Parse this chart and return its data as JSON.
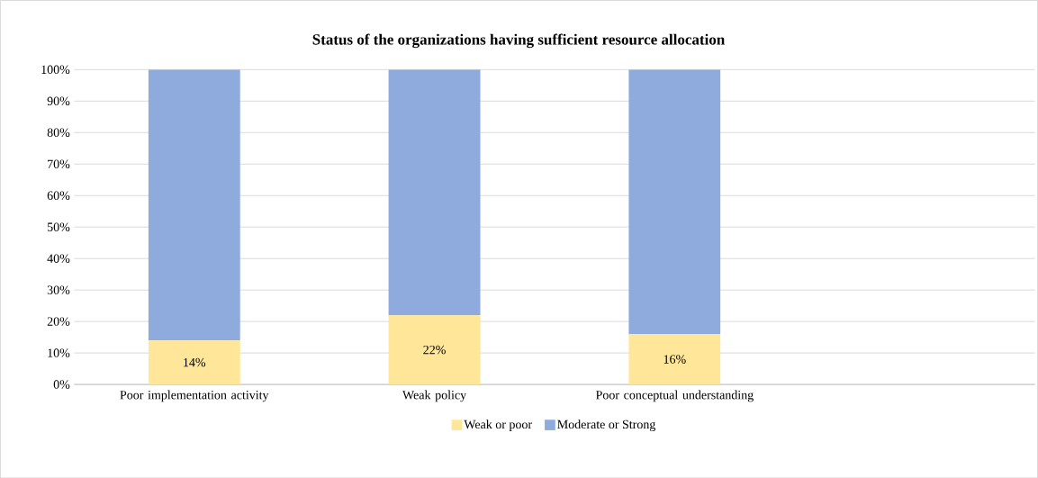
{
  "chart_data": {
    "type": "bar",
    "title": "Status of the organizations having sufficient resource allocation",
    "categories": [
      "Poor implementation activity",
      "Weak policy",
      "Poor conceptual understanding",
      null
    ],
    "stacked": true,
    "series": [
      {
        "name": "Weak or poor",
        "color": "#ffe699",
        "values": [
          14,
          22,
          16,
          null
        ],
        "value_labels": [
          "14%",
          "22%",
          "16%",
          null
        ]
      },
      {
        "name": "Moderate or Strong",
        "color": "#8faadc",
        "values": [
          86,
          78,
          84,
          null
        ]
      }
    ],
    "ylim": [
      0,
      100
    ],
    "yticks": [
      {
        "value": 0,
        "label": "0%"
      },
      {
        "value": 10,
        "label": "10%"
      },
      {
        "value": 20,
        "label": "20%"
      },
      {
        "value": 30,
        "label": "30%"
      },
      {
        "value": 40,
        "label": "40%"
      },
      {
        "value": 50,
        "label": "50%"
      },
      {
        "value": 60,
        "label": "60%"
      },
      {
        "value": 70,
        "label": "70%"
      },
      {
        "value": 80,
        "label": "80%"
      },
      {
        "value": 90,
        "label": "90%"
      },
      {
        "value": 100,
        "label": "100%"
      }
    ],
    "grid": "y",
    "legend": "bottom"
  }
}
